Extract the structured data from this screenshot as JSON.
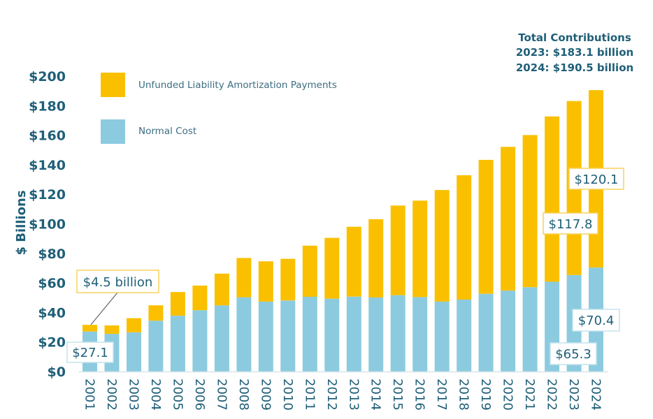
{
  "chart_data": {
    "type": "bar",
    "stacked": true,
    "title": "",
    "xlabel": "",
    "ylabel": "$ Billions",
    "ylim": [
      0,
      200
    ],
    "yticks": [
      0,
      20,
      40,
      60,
      80,
      100,
      120,
      140,
      160,
      180,
      200
    ],
    "ytick_labels": [
      "$0",
      "$20",
      "$40",
      "$60",
      "$80",
      "$100",
      "$120",
      "$140",
      "$160",
      "$180",
      "$200"
    ],
    "grid": false,
    "legend_position": "top-left",
    "categories": [
      "2001",
      "2002",
      "2003",
      "2004",
      "2005",
      "2006",
      "2007",
      "2008",
      "2009",
      "2010",
      "2011",
      "2012",
      "2013",
      "2014",
      "2015",
      "2016",
      "2017",
      "2018",
      "2019",
      "2020",
      "2021",
      "2022",
      "2023",
      "2024"
    ],
    "series": [
      {
        "name": "Normal Cost",
        "color": "#8ccbdf",
        "values": [
          27.1,
          25.5,
          26.5,
          34.4,
          37.8,
          41.5,
          44.8,
          50.3,
          47.3,
          48.1,
          50.6,
          49.3,
          50.7,
          50.1,
          51.7,
          50.4,
          47.4,
          48.7,
          52.6,
          54.8,
          57.1,
          60.8,
          65.3,
          70.4
        ]
      },
      {
        "name": "Unfunded Liability Amortization Payments",
        "color": "#fac000",
        "values": [
          4.5,
          5.7,
          9.6,
          10.4,
          16.0,
          16.7,
          21.5,
          26.6,
          27.3,
          28.2,
          34.6,
          41.2,
          47.3,
          53.0,
          60.7,
          65.3,
          75.5,
          84.2,
          90.7,
          97.3,
          103.0,
          111.9,
          117.8,
          120.1
        ]
      }
    ],
    "legend": [
      {
        "label": "Unfunded Liability Amortization Payments",
        "color": "#fac000"
      },
      {
        "label": "Normal Cost",
        "color": "#8ccbdf"
      }
    ],
    "annotations": [
      {
        "text": "$4.5 billion",
        "category": "2001",
        "series": "Unfunded Liability Amortization Payments",
        "style": "yellow-box-with-leader"
      },
      {
        "text": "$27.1",
        "category": "2001",
        "series": "Normal Cost",
        "style": "blue-box"
      },
      {
        "text": "$117.8",
        "category": "2023",
        "series": "Unfunded Liability Amortization Payments",
        "style": "yellow-box"
      },
      {
        "text": "$120.1",
        "category": "2024",
        "series": "Unfunded Liability Amortization Payments",
        "style": "yellow-box"
      },
      {
        "text": "$65.3",
        "category": "2023",
        "series": "Normal Cost",
        "style": "blue-box"
      },
      {
        "text": "$70.4",
        "category": "2024",
        "series": "Normal Cost",
        "style": "blue-box"
      }
    ],
    "totals_note": {
      "title": "Total Contributions",
      "lines": [
        "2023: $183.1 billion",
        "2024: $190.5 billion"
      ]
    }
  }
}
